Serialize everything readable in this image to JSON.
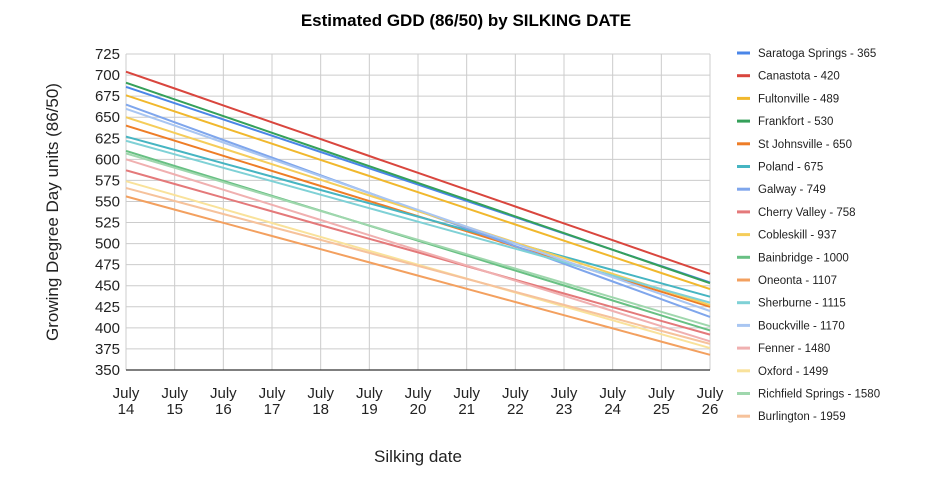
{
  "chart_data": {
    "type": "line",
    "title": "Estimated GDD (86/50) by SILKING DATE",
    "xlabel": "Silking date",
    "ylabel": "Growing Degree Day units (86/50)",
    "ylim": [
      350,
      725
    ],
    "yticks": [
      350,
      375,
      400,
      425,
      450,
      475,
      500,
      525,
      550,
      575,
      600,
      625,
      650,
      675,
      700,
      725
    ],
    "grid": true,
    "legend_position": "right",
    "categories": [
      "July 14",
      "July 15",
      "July 16",
      "July 17",
      "July 18",
      "July 19",
      "July 20",
      "July 21",
      "July 22",
      "July 23",
      "July 24",
      "July 25",
      "July 26"
    ],
    "series": [
      {
        "name": "Saratoga Springs - 365",
        "color": "#4a86e8",
        "start": 686,
        "end": 454
      },
      {
        "name": "Canastota - 420",
        "color": "#d9463e",
        "start": 704,
        "end": 464
      },
      {
        "name": "Fultonville - 489",
        "color": "#f1b82d",
        "start": 676,
        "end": 446
      },
      {
        "name": "Frankfort - 530",
        "color": "#35a05a",
        "start": 691,
        "end": 453
      },
      {
        "name": "St Johnsville - 650",
        "color": "#ee7d27",
        "start": 640,
        "end": 425
      },
      {
        "name": "Poland - 675",
        "color": "#46b5c2",
        "start": 627,
        "end": 437
      },
      {
        "name": "Galway - 749",
        "color": "#7fa6ec",
        "start": 665,
        "end": 413
      },
      {
        "name": "Cherry Valley - 758",
        "color": "#e4797a",
        "start": 587,
        "end": 392
      },
      {
        "name": "Cobleskill - 937",
        "color": "#f5cd5a",
        "start": 650,
        "end": 427
      },
      {
        "name": "Bainbridge - 1000",
        "color": "#68c083",
        "start": 610,
        "end": 397
      },
      {
        "name": "Oneonta - 1107",
        "color": "#f3a05f",
        "start": 556,
        "end": 368
      },
      {
        "name": "Sherburne - 1115",
        "color": "#7fd1d6",
        "start": 622,
        "end": 430
      },
      {
        "name": "Bouckville - 1170",
        "color": "#a9c6f2",
        "start": 660,
        "end": 420
      },
      {
        "name": "Fenner - 1480",
        "color": "#f0b0b0",
        "start": 600,
        "end": 384
      },
      {
        "name": "Oxford - 1499",
        "color": "#f9e29b",
        "start": 574,
        "end": 376
      },
      {
        "name": "Richfield Springs - 1580",
        "color": "#9fd7ad",
        "start": 607,
        "end": 402
      },
      {
        "name": "Burlington - 1959",
        "color": "#f6c29b",
        "start": 566,
        "end": 381
      }
    ]
  }
}
